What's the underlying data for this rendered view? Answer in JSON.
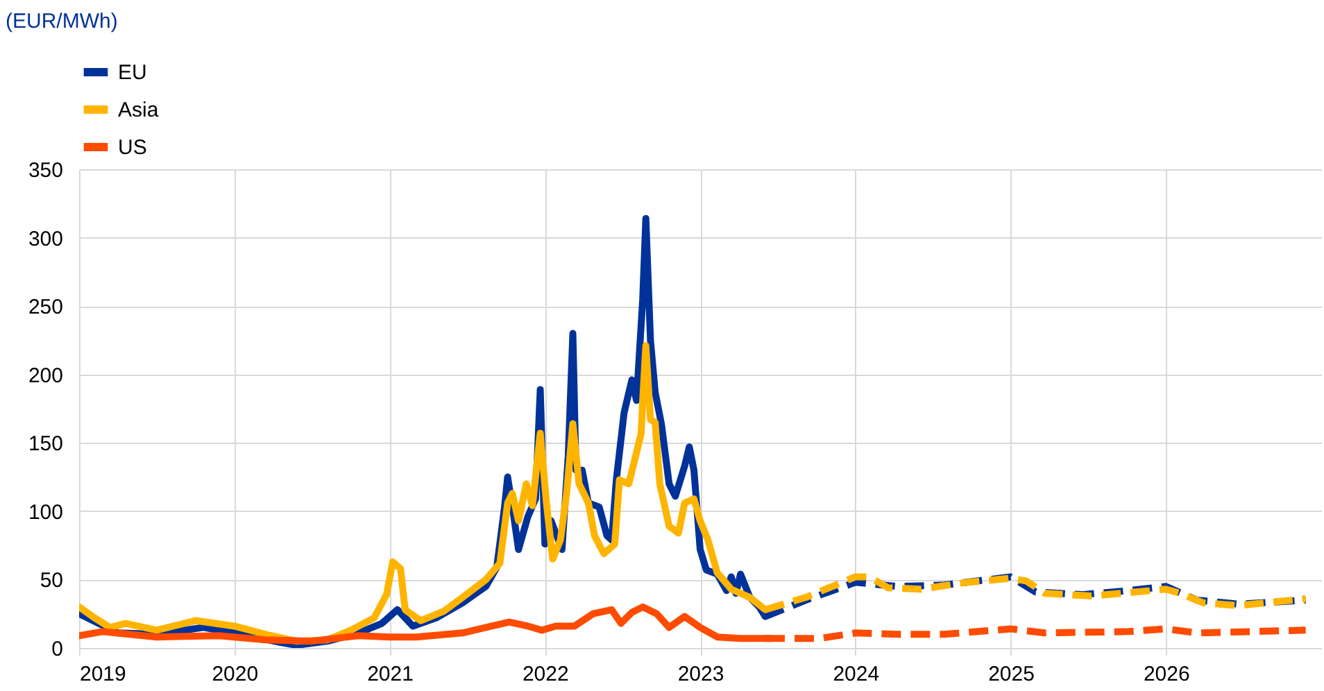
{
  "chart_data": {
    "type": "line",
    "annotations": [
      "(EUR/MWh)"
    ],
    "xlim": [
      2019,
      2027
    ],
    "xticks": [
      2019,
      2020,
      2021,
      2022,
      2023,
      2024,
      2025,
      2026
    ],
    "ylim": [
      0,
      350
    ],
    "yticks": [
      0,
      50,
      100,
      150,
      200,
      250,
      300,
      350
    ],
    "grid": true,
    "legend": "top left",
    "series": [
      {
        "name": "EU",
        "color": "#003299",
        "line_style": "solid",
        "x": [
          2019.0,
          2019.25,
          2019.5,
          2019.8,
          2020.0,
          2020.3,
          2020.4,
          2020.6,
          2020.8,
          2020.95,
          2021.05,
          2021.15,
          2021.3,
          2021.47,
          2021.62,
          2021.69,
          2021.74,
          2021.76,
          2021.8,
          2021.83,
          2021.89,
          2021.94,
          2021.97,
          2022.0,
          2022.04,
          2022.11,
          2022.15,
          2022.18,
          2022.2,
          2022.24,
          2022.28,
          2022.35,
          2022.4,
          2022.43,
          2022.46,
          2022.51,
          2022.56,
          2022.59,
          2022.63,
          2022.65,
          2022.68,
          2022.71,
          2022.75,
          2022.8,
          2022.84,
          2022.9,
          2022.93,
          2022.96,
          2023.0,
          2023.04,
          2023.11,
          2023.17,
          2023.2,
          2023.23,
          2023.26,
          2023.32,
          2023.38,
          2023.42
        ],
        "values": [
          25,
          11,
          10,
          15,
          11,
          4,
          2,
          5,
          11,
          18,
          28,
          16,
          22,
          33,
          45,
          59,
          103,
          125,
          96,
          72,
          96,
          109,
          189,
          76,
          93,
          72,
          140,
          230,
          130,
          130,
          106,
          103,
          82,
          79,
          123,
          172,
          196,
          181,
          255,
          314,
          225,
          187,
          164,
          120,
          111,
          133,
          147,
          130,
          72,
          57,
          54,
          42,
          52,
          40,
          54,
          37,
          30,
          23
        ]
      },
      {
        "color": "#003299",
        "line_style": "dashed",
        "x": [
          2023.42,
          2023.68,
          2024.0,
          2024.27,
          2024.57,
          2025.0,
          2025.16,
          2025.46,
          2025.76,
          2026.0,
          2026.2,
          2026.47,
          2026.9
        ],
        "values": [
          23,
          35,
          48,
          45,
          46,
          52,
          41,
          39,
          42,
          45,
          35,
          32,
          35
        ]
      },
      {
        "name": "Asia",
        "color": "#ffb400",
        "line_style": "solid",
        "x": [
          2019.0,
          2019.1,
          2019.2,
          2019.3,
          2019.5,
          2019.75,
          2020.0,
          2020.2,
          2020.4,
          2020.6,
          2020.75,
          2020.9,
          2020.98,
          2021.02,
          2021.07,
          2021.1,
          2021.2,
          2021.35,
          2021.47,
          2021.62,
          2021.71,
          2021.76,
          2021.79,
          2021.83,
          2021.88,
          2021.92,
          2021.97,
          2022.01,
          2022.05,
          2022.1,
          2022.14,
          2022.18,
          2022.22,
          2022.28,
          2022.32,
          2022.38,
          2022.45,
          2022.48,
          2022.54,
          2022.59,
          2022.62,
          2022.63,
          2022.65,
          2022.68,
          2022.71,
          2022.74,
          2022.8,
          2022.86,
          2022.9,
          2022.96,
          2023.0,
          2023.05,
          2023.11,
          2023.2,
          2023.32,
          2023.42
        ],
        "values": [
          30,
          22,
          15,
          18,
          13,
          20,
          16,
          10,
          5,
          6,
          13,
          22,
          39,
          63,
          58,
          28,
          20,
          27,
          37,
          50,
          62,
          106,
          113,
          93,
          120,
          104,
          157,
          106,
          65,
          79,
          113,
          164,
          120,
          106,
          82,
          69,
          76,
          123,
          120,
          143,
          157,
          181,
          221,
          167,
          165,
          120,
          89,
          84,
          106,
          109,
          93,
          79,
          55,
          43,
          37,
          28
        ]
      },
      {
        "color": "#ffb400",
        "line_style": "dashed",
        "x": [
          2023.42,
          2023.68,
          2024.0,
          2024.09,
          2024.21,
          2024.42,
          2024.72,
          2025.0,
          2025.1,
          2025.22,
          2025.52,
          2026.0,
          2026.09,
          2026.24,
          2026.47,
          2026.9
        ],
        "values": [
          28,
          37,
          52,
          52,
          44,
          43,
          48,
          51,
          49,
          40,
          38,
          43,
          40,
          33,
          31,
          36
        ]
      },
      {
        "name": "US",
        "color": "#ff4b00",
        "line_style": "solid",
        "x": [
          2019.0,
          2019.15,
          2019.5,
          2019.9,
          2020.2,
          2020.5,
          2020.8,
          2021.0,
          2021.17,
          2021.47,
          2021.62,
          2021.77,
          2021.89,
          2021.98,
          2022.07,
          2022.19,
          2022.31,
          2022.43,
          2022.49,
          2022.56,
          2022.63,
          2022.72,
          2022.8,
          2022.9,
          2023.0,
          2023.11,
          2023.26,
          2023.46
        ],
        "values": [
          9,
          12,
          8,
          9,
          6,
          5,
          9,
          8,
          8,
          11,
          15,
          19,
          16,
          13,
          16,
          16,
          25,
          28,
          18,
          26,
          30,
          25,
          15,
          23,
          15,
          8,
          7,
          7
        ]
      },
      {
        "color": "#ff4b00",
        "line_style": "dashed",
        "x": [
          2023.42,
          2023.77,
          2024.0,
          2024.27,
          2024.57,
          2025.0,
          2025.22,
          2025.76,
          2026.0,
          2026.2,
          2026.9
        ],
        "values": [
          7,
          7,
          11,
          10,
          10,
          14,
          11,
          12,
          14,
          11,
          13
        ]
      }
    ]
  }
}
